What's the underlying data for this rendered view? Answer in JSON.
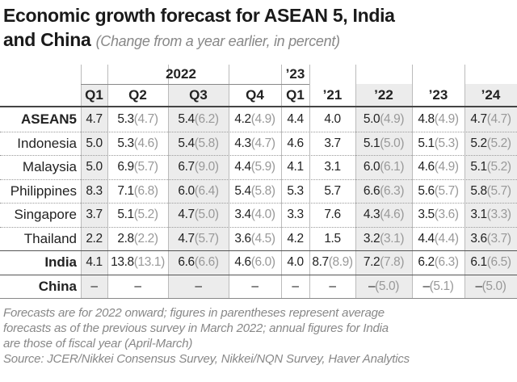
{
  "header": {
    "title_line1": "Economic growth forecast for ASEAN 5, India",
    "title_line2": "and China",
    "subtitle": "(Change from a year earlier, in percent)"
  },
  "table": {
    "groups": [
      {
        "label": "2022",
        "span": 4
      },
      {
        "label": "’23",
        "span": 1
      }
    ],
    "columns": [
      "Q1",
      "Q2",
      "Q3",
      "Q4",
      "Q1",
      "’21",
      "’22",
      "’23",
      "’24"
    ],
    "rows": [
      {
        "label": "ASEAN5",
        "bold": true,
        "cells": [
          {
            "value": "4.7"
          },
          {
            "value": "5.3",
            "prev": "(4.7)"
          },
          {
            "value": "5.4",
            "prev": "(6.2)"
          },
          {
            "value": "4.2",
            "prev": "(4.9)"
          },
          {
            "value": "4.4"
          },
          {
            "value": "4.0"
          },
          {
            "value": "5.0",
            "prev": "(4.9)"
          },
          {
            "value": "4.8",
            "prev": "(4.9)"
          },
          {
            "value": "4.7",
            "prev": "(4.7)"
          }
        ]
      },
      {
        "label": "Indonesia",
        "cells": [
          {
            "value": "5.0"
          },
          {
            "value": "5.3",
            "prev": "(4.6)"
          },
          {
            "value": "5.4",
            "prev": "(5.8)"
          },
          {
            "value": "4.3",
            "prev": "(4.7)"
          },
          {
            "value": "4.6"
          },
          {
            "value": "3.7"
          },
          {
            "value": "5.1",
            "prev": "(5.0)"
          },
          {
            "value": "5.1",
            "prev": "(5.3)"
          },
          {
            "value": "5.2",
            "prev": "(5.2)"
          }
        ]
      },
      {
        "label": "Malaysia",
        "cells": [
          {
            "value": "5.0"
          },
          {
            "value": "6.9",
            "prev": "(5.7)"
          },
          {
            "value": "6.7",
            "prev": "(9.0)"
          },
          {
            "value": "4.4",
            "prev": "(5.9)"
          },
          {
            "value": "4.1"
          },
          {
            "value": "3.1"
          },
          {
            "value": "6.0",
            "prev": "(6.1)"
          },
          {
            "value": "4.6",
            "prev": "(4.9)"
          },
          {
            "value": "5.1",
            "prev": "(5.2)"
          }
        ]
      },
      {
        "label": "Philippines",
        "cells": [
          {
            "value": "8.3"
          },
          {
            "value": "7.1",
            "prev": "(6.8)"
          },
          {
            "value": "6.0",
            "prev": "(6.4)"
          },
          {
            "value": "5.4",
            "prev": "(5.8)"
          },
          {
            "value": "5.3"
          },
          {
            "value": "5.7"
          },
          {
            "value": "6.6",
            "prev": "(6.3)"
          },
          {
            "value": "5.6",
            "prev": "(5.7)"
          },
          {
            "value": "5.8",
            "prev": "(5.7)"
          }
        ]
      },
      {
        "label": "Singapore",
        "cells": [
          {
            "value": "3.7"
          },
          {
            "value": "5.1",
            "prev": "(5.2)"
          },
          {
            "value": "4.7",
            "prev": "(5.0)"
          },
          {
            "value": "3.4",
            "prev": "(4.0)"
          },
          {
            "value": "3.3"
          },
          {
            "value": "7.6"
          },
          {
            "value": "4.3",
            "prev": "(4.6)"
          },
          {
            "value": "3.5",
            "prev": "(3.6)"
          },
          {
            "value": "3.1",
            "prev": "(3.3)"
          }
        ]
      },
      {
        "label": "Thailand",
        "cells": [
          {
            "value": "2.2"
          },
          {
            "value": "2.8",
            "prev": "(2.2)"
          },
          {
            "value": "4.7",
            "prev": "(5.7)"
          },
          {
            "value": "3.6",
            "prev": "(4.5)"
          },
          {
            "value": "4.2"
          },
          {
            "value": "1.5"
          },
          {
            "value": "3.2",
            "prev": "(3.1)"
          },
          {
            "value": "4.4",
            "prev": "(4.4)"
          },
          {
            "value": "3.6",
            "prev": "(3.7)"
          }
        ]
      },
      {
        "label": "India",
        "bold": true,
        "cells": [
          {
            "value": "4.1"
          },
          {
            "value": "13.8",
            "prev": "(13.1)"
          },
          {
            "value": "6.6",
            "prev": "(6.6)"
          },
          {
            "value": "4.6",
            "prev": "(6.0)"
          },
          {
            "value": "4.0"
          },
          {
            "value": "8.7",
            "prev": "(8.9)"
          },
          {
            "value": "7.2",
            "prev": "(7.8)"
          },
          {
            "value": "6.2",
            "prev": "(6.3)"
          },
          {
            "value": "6.1",
            "prev": "(6.5)"
          }
        ]
      },
      {
        "label": "China",
        "bold": true,
        "cells": [
          {
            "value": "–"
          },
          {
            "value": "–"
          },
          {
            "value": "–"
          },
          {
            "value": "–"
          },
          {
            "value": "–"
          },
          {
            "value": "–"
          },
          {
            "value": "–",
            "prev": "(5.0)"
          },
          {
            "value": "–",
            "prev": "(5.1)"
          },
          {
            "value": "–",
            "prev": "(5.0)"
          }
        ]
      }
    ]
  },
  "notes": [
    "Forecasts are for 2022 onward; figures in parentheses represent average",
    "forecasts as of the previous survey in March 2022; annual figures for India",
    "are those of fiscal year (April-March)",
    "Source: JCER/Nikkei Consensus Survey, Nikkei/NQN Survey, Haver Analytics"
  ]
}
